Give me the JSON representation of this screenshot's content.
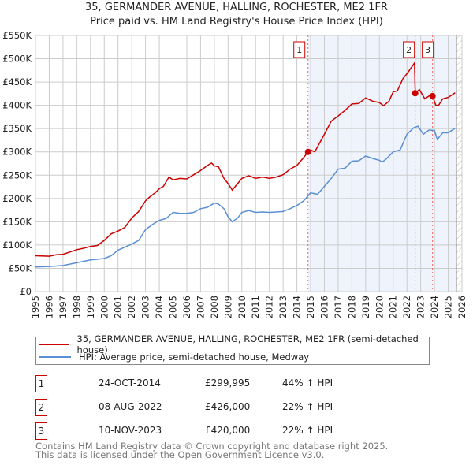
{
  "chart_data": {
    "type": "line",
    "title": "35, GERMANDER AVENUE, HALLING, ROCHESTER, ME2 1FR",
    "subtitle": "Price paid vs. HM Land Registry's House Price Index (HPI)",
    "xlim": [
      1995,
      2026
    ],
    "ylim": [
      0,
      550000
    ],
    "x_ticks": [
      "1995",
      "1996",
      "1997",
      "1998",
      "1999",
      "2000",
      "2001",
      "2002",
      "2003",
      "2004",
      "2005",
      "2006",
      "2007",
      "2008",
      "2009",
      "2010",
      "2011",
      "2012",
      "2013",
      "2014",
      "2015",
      "2016",
      "2017",
      "2018",
      "2019",
      "2020",
      "2021",
      "2022",
      "2023",
      "2024",
      "2025",
      "2026"
    ],
    "y_ticks": [
      {
        "v": 0,
        "label": "£0"
      },
      {
        "v": 50000,
        "label": "£50K"
      },
      {
        "v": 100000,
        "label": "£100K"
      },
      {
        "v": 150000,
        "label": "£150K"
      },
      {
        "v": 200000,
        "label": "£200K"
      },
      {
        "v": 250000,
        "label": "£250K"
      },
      {
        "v": 300000,
        "label": "£300K"
      },
      {
        "v": 350000,
        "label": "£350K"
      },
      {
        "v": 400000,
        "label": "£400K"
      },
      {
        "v": 450000,
        "label": "£450K"
      },
      {
        "v": 500000,
        "label": "£500K"
      },
      {
        "v": 550000,
        "label": "£550K"
      }
    ],
    "grid": true,
    "shaded_from": 2014.81,
    "hatched_from": 2025.6,
    "series": [
      {
        "name": "35, GERMANDER AVENUE, HALLING, ROCHESTER, ME2 1FR (semi-detached house)",
        "color": "#cc0000",
        "x": [
          1995,
          1996,
          1996.5,
          1997,
          1997.5,
          1998,
          1998.5,
          1999,
          1999.5,
          2000,
          2000.5,
          2001,
          2001.5,
          2002,
          2002.5,
          2003,
          2003.3,
          2003.7,
          2004,
          2004.3,
          2004.7,
          2005,
          2005.5,
          2006,
          2006.5,
          2007,
          2007.5,
          2007.8,
          2008,
          2008.3,
          2008.7,
          2009,
          2009.3,
          2009.7,
          2010,
          2010.5,
          2011,
          2011.5,
          2012,
          2012.5,
          2013,
          2013.5,
          2014,
          2014.5,
          2014.81,
          2015,
          2015.3,
          2016,
          2016.5,
          2017,
          2017.5,
          2018,
          2018.5,
          2019,
          2019.5,
          2020,
          2020.3,
          2020.7,
          2021,
          2021.3,
          2021.7,
          2022,
          2022.55,
          2022.6,
          2022.9,
          2023.3,
          2023.7,
          2023.86,
          2024.1,
          2024.3,
          2024.6,
          2025,
          2025.5
        ],
        "y": [
          77,
          76,
          79,
          80,
          85,
          90,
          93,
          97,
          99,
          110,
          124,
          130,
          138,
          158,
          172,
          195,
          203,
          212,
          221,
          226,
          246,
          240,
          243,
          242,
          251,
          260,
          271,
          276,
          270,
          268,
          243,
          232,
          218,
          232,
          243,
          249,
          243,
          246,
          243,
          246,
          251,
          263,
          271,
          288,
          300,
          304,
          300,
          338,
          366,
          377,
          389,
          403,
          404,
          416,
          409,
          406,
          399,
          409,
          429,
          431,
          457,
          468,
          491,
          426,
          434,
          414,
          422,
          420,
          400,
          400,
          414,
          417,
          427
        ]
      },
      {
        "name": "HPI: Average price, semi-detached house, Medway",
        "color": "#5b8fd4",
        "x": [
          1995,
          1996,
          1997,
          1998,
          1999,
          2000,
          2000.5,
          2001,
          2002,
          2002.5,
          2003,
          2003.5,
          2004,
          2004.5,
          2005,
          2005.5,
          2006,
          2006.5,
          2007,
          2007.5,
          2008,
          2008.3,
          2008.7,
          2009,
          2009.3,
          2009.7,
          2010,
          2010.5,
          2011,
          2011.5,
          2012,
          2012.5,
          2013,
          2013.5,
          2014,
          2014.5,
          2015,
          2015.5,
          2016,
          2016.5,
          2017,
          2017.5,
          2018,
          2018.5,
          2019,
          2019.5,
          2020,
          2020.2,
          2020.5,
          2021,
          2021.5,
          2022,
          2022.5,
          2022.8,
          2023.2,
          2023.6,
          2024,
          2024.2,
          2024.6,
          2025,
          2025.5
        ],
        "y": [
          53,
          54,
          56,
          62,
          68,
          71,
          77,
          89,
          102,
          110,
          133,
          144,
          153,
          157,
          170,
          168,
          168,
          170,
          178,
          181,
          190,
          188,
          178,
          161,
          150,
          158,
          170,
          174,
          170,
          171,
          170,
          171,
          172,
          178,
          185,
          195,
          212,
          209,
          226,
          243,
          263,
          265,
          280,
          281,
          291,
          286,
          282,
          278,
          285,
          300,
          304,
          338,
          352,
          355,
          338,
          347,
          346,
          327,
          341,
          341,
          351
        ]
      }
    ],
    "y_units": "thousands GBP",
    "sales": [
      {
        "label": "1",
        "x": 2014.81,
        "y": 299.995
      },
      {
        "label": "2",
        "x": 2022.6,
        "y": 426
      },
      {
        "label": "3",
        "x": 2023.86,
        "y": 420
      }
    ]
  },
  "legend": {
    "red": "35, GERMANDER AVENUE, HALLING, ROCHESTER, ME2 1FR (semi-detached house)",
    "blue": "HPI: Average price, semi-detached house, Medway"
  },
  "table": [
    {
      "num": "1",
      "date": "24-OCT-2014",
      "price": "£299,995",
      "hpi": "44% ↑ HPI"
    },
    {
      "num": "2",
      "date": "08-AUG-2022",
      "price": "£426,000",
      "hpi": "22% ↑ HPI"
    },
    {
      "num": "3",
      "date": "10-NOV-2023",
      "price": "£420,000",
      "hpi": "22% ↑ HPI"
    }
  ],
  "footer": {
    "line1": "Contains HM Land Registry data © Crown copyright and database right 2025.",
    "line2": "This data is licensed under the Open Government Licence v3.0."
  }
}
